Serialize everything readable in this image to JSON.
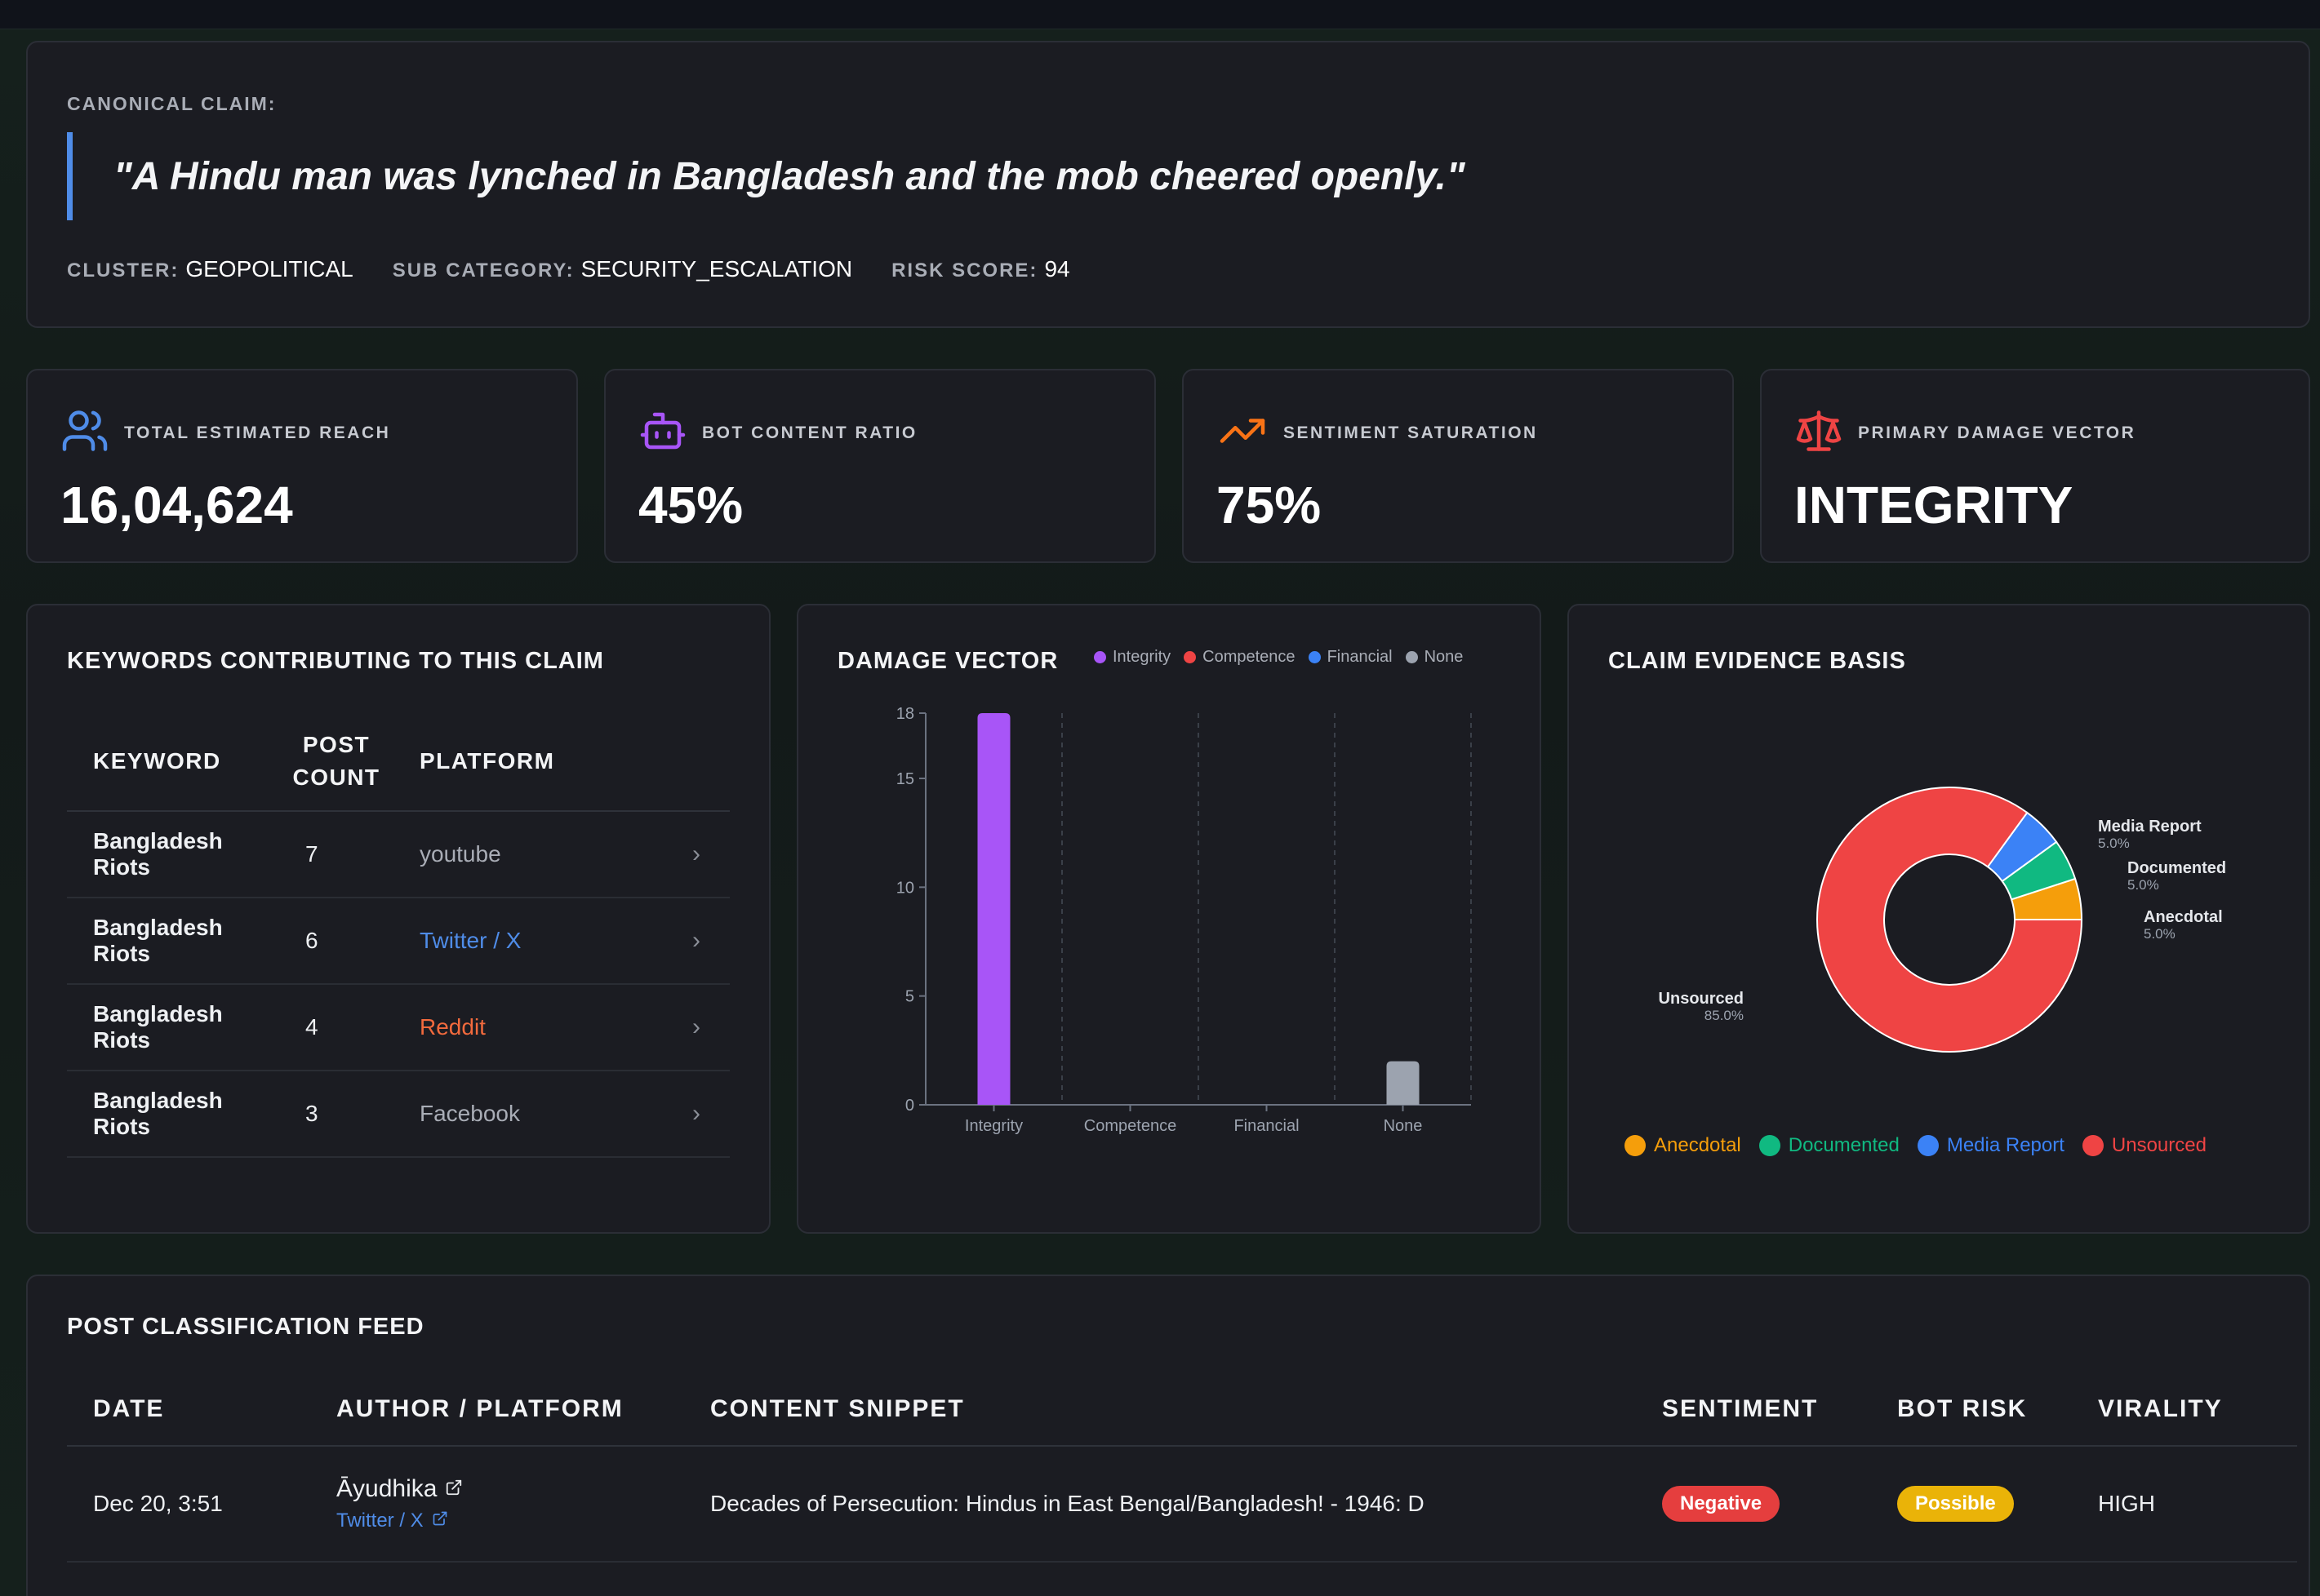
{
  "claim": {
    "label": "CANONICAL CLAIM:",
    "text": "\"A Hindu man was lynched in Bangladesh and the mob cheered openly.\"",
    "cluster_label": "CLUSTER:",
    "cluster_value": "GEOPOLITICAL",
    "subcat_label": "SUB CATEGORY:",
    "subcat_value": "SECURITY_ESCALATION",
    "risk_label": "RISK SCORE:",
    "risk_value": "94"
  },
  "stats": [
    {
      "icon": "users-icon",
      "label": "TOTAL ESTIMATED REACH",
      "value": "16,04,624",
      "color": "#4f8ce8"
    },
    {
      "icon": "bot-icon",
      "label": "BOT CONTENT RATIO",
      "value": "45%",
      "color": "#a855f7"
    },
    {
      "icon": "trending-up-icon",
      "label": "SENTIMENT SATURATION",
      "value": "75%",
      "color": "#f97316"
    },
    {
      "icon": "scale-icon",
      "label": "PRIMARY DAMAGE VECTOR",
      "value": "INTEGRITY",
      "color": "#ef4444"
    }
  ],
  "keywords": {
    "title": "KEYWORDS CONTRIBUTING TO THIS CLAIM",
    "col_keyword": "KEYWORD",
    "col_post_count_1": "POST",
    "col_post_count_2": "COUNT",
    "col_platform": "PLATFORM",
    "rows": [
      {
        "keyword": "Bangladesh Riots",
        "count": "7",
        "platform": "youtube",
        "color": "#a9adb6"
      },
      {
        "keyword": "Bangladesh Riots",
        "count": "6",
        "platform": "Twitter / X",
        "color": "#4f8ce8"
      },
      {
        "keyword": "Bangladesh Riots",
        "count": "4",
        "platform": "Reddit",
        "color": "#f26a3d"
      },
      {
        "keyword": "Bangladesh Riots",
        "count": "3",
        "platform": "Facebook",
        "color": "#a9adb6"
      }
    ]
  },
  "damage": {
    "title": "DAMAGE VECTOR",
    "legend": [
      {
        "name": "Integrity",
        "color": "#a855f7"
      },
      {
        "name": "Competence",
        "color": "#ef4444"
      },
      {
        "name": "Financial",
        "color": "#3b82f6"
      },
      {
        "name": "None",
        "color": "#9ca3af"
      }
    ]
  },
  "evidence": {
    "title": "CLAIM EVIDENCE BASIS",
    "legend": [
      {
        "name": "Anecdotal",
        "color": "#f59e0b"
      },
      {
        "name": "Documented",
        "color": "#10b981"
      },
      {
        "name": "Media Report",
        "color": "#3b82f6"
      },
      {
        "name": "Unsourced",
        "color": "#ef4444"
      }
    ]
  },
  "chart_data": [
    {
      "type": "bar",
      "title": "DAMAGE VECTOR",
      "categories": [
        "Integrity",
        "Competence",
        "Financial",
        "None"
      ],
      "values": [
        18,
        0,
        0,
        2
      ],
      "colors": [
        "#a855f7",
        "#ef4444",
        "#3b82f6",
        "#9ca3af"
      ],
      "ylim": [
        0,
        18
      ],
      "yticks": [
        0,
        5,
        10,
        15,
        18
      ],
      "xlabel": "",
      "ylabel": ""
    },
    {
      "type": "pie",
      "title": "CLAIM EVIDENCE BASIS",
      "labels": [
        "Anecdotal",
        "Documented",
        "Media Report",
        "Unsourced"
      ],
      "values": [
        5.0,
        5.0,
        5.0,
        85.0
      ],
      "value_labels": [
        "5.0%",
        "5.0%",
        "5.0%",
        "85.0%"
      ],
      "colors": [
        "#f59e0b",
        "#10b981",
        "#3b82f6",
        "#ef4444"
      ]
    }
  ],
  "feed": {
    "title": "POST CLASSIFICATION FEED",
    "cols": [
      "DATE",
      "AUTHOR / PLATFORM",
      "CONTENT SNIPPET",
      "SENTIMENT",
      "BOT RISK",
      "VIRALITY"
    ],
    "rows": [
      {
        "date": "Dec 20, 3:51",
        "author": "Āyudhika",
        "platform": "Twitter / X",
        "snippet": "Decades of Persecution: Hindus in East Bengal/Bangladesh! - 1946: D",
        "sentiment": "Negative",
        "sentiment_color": "#e53e3e",
        "bot_risk": "Possible",
        "bot_color": "#eab308",
        "virality": "HIGH"
      }
    ]
  }
}
